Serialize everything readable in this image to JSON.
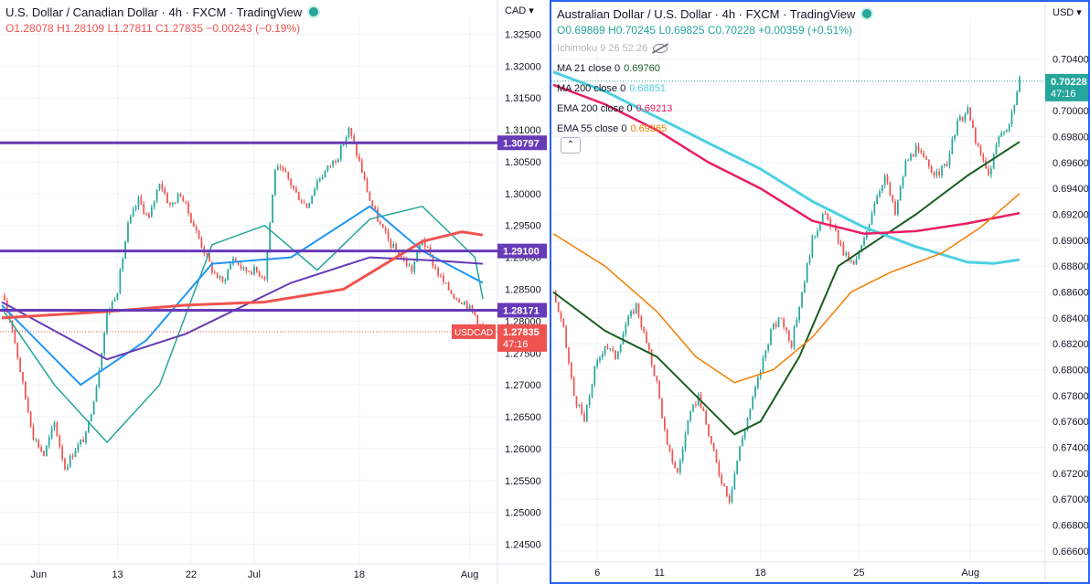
{
  "colors": {
    "up": "#26a69a",
    "down": "#ef5350",
    "level_line": "#673ab7",
    "axis_text": "#131722",
    "grid": "#f0f3fa"
  },
  "left_chart": {
    "header": {
      "title": "U.S. Dollar / Canadian Dollar · 4h · FXCM · TradingView",
      "open": "O1.28078",
      "high": "H1.28109",
      "low": "L1.27811",
      "close": "C1.27835",
      "change": "−0.00243 (−0.19%)"
    },
    "currency_label": "CAD",
    "last_price_label": "1.27835",
    "countdown": "47:16",
    "symbol_tag": "USDCAD"
  },
  "right_chart": {
    "header": {
      "title": "Australian Dollar / U.S. Dollar · 4h · FXCM · TradingView",
      "open": "O0.69869",
      "high": "H0.70245",
      "low": "L0.69825",
      "close": "C0.70228",
      "change": "+0.00359 (+0.51%)"
    },
    "currency_label": "USD",
    "last_price_label": "0.70228",
    "countdown": "47:16",
    "indicators": [
      {
        "label": "Ichimoku 9 26 52 26",
        "value": "",
        "color": "#b2b5be",
        "hidden": true
      },
      {
        "label": "MA 21 close 0",
        "value": "0.69760",
        "color": "#1b5e20"
      },
      {
        "label": "MA 200 close 0",
        "value": "0.68851",
        "color": "#4dd0e1"
      },
      {
        "label": "EMA 200 close 0",
        "value": "0.69213",
        "color": "#e91e63"
      },
      {
        "label": "EMA 55 close 0",
        "value": "0.69365",
        "color": "#f57c00"
      }
    ],
    "collapse_symbol": "⌃"
  },
  "chart_data": [
    {
      "type": "candlestick",
      "symbol": "USDCAD",
      "title": "U.S. Dollar / Canadian Dollar · 4h · FXCM · TradingView",
      "ylim": [
        1.2425,
        1.3275
      ],
      "y_ticks": [
        "1.32500",
        "1.32000",
        "1.31500",
        "1.31000",
        "1.30500",
        "1.30000",
        "1.29500",
        "1.29000",
        "1.28500",
        "1.28000",
        "1.27500",
        "1.27000",
        "1.26500",
        "1.26000",
        "1.25500",
        "1.25000",
        "1.24500"
      ],
      "x_ticks": [
        "Jun",
        "13",
        "22",
        "Jul",
        "18",
        "Aug"
      ],
      "horizontal_levels": [
        {
          "value": 1.30797,
          "label": "1.30797"
        },
        {
          "value": 1.291,
          "label": "1.29100"
        },
        {
          "value": 1.28171,
          "label": "1.28171"
        }
      ],
      "last_price": 1.27835,
      "close_path": [
        [
          0,
          1.284
        ],
        [
          4,
          1.279
        ],
        [
          8,
          1.27
        ],
        [
          12,
          1.262
        ],
        [
          16,
          1.259
        ],
        [
          20,
          1.264
        ],
        [
          24,
          1.257
        ],
        [
          28,
          1.26
        ],
        [
          32,
          1.262
        ],
        [
          36,
          1.27
        ],
        [
          40,
          1.281
        ],
        [
          44,
          1.285
        ],
        [
          48,
          1.295
        ],
        [
          52,
          1.299
        ],
        [
          56,
          1.296
        ],
        [
          60,
          1.302
        ],
        [
          64,
          1.298
        ],
        [
          68,
          1.3
        ],
        [
          72,
          1.296
        ],
        [
          76,
          1.292
        ],
        [
          80,
          1.288
        ],
        [
          84,
          1.286
        ],
        [
          88,
          1.29
        ],
        [
          92,
          1.288
        ],
        [
          96,
          1.288
        ],
        [
          100,
          1.287
        ],
        [
          104,
          1.304
        ],
        [
          108,
          1.303
        ],
        [
          112,
          1.3
        ],
        [
          116,
          1.298
        ],
        [
          120,
          1.302
        ],
        [
          124,
          1.304
        ],
        [
          128,
          1.306
        ],
        [
          132,
          1.31
        ],
        [
          136,
          1.305
        ],
        [
          140,
          1.299
        ],
        [
          144,
          1.295
        ],
        [
          148,
          1.292
        ],
        [
          152,
          1.29
        ],
        [
          156,
          1.288
        ],
        [
          160,
          1.293
        ],
        [
          164,
          1.289
        ],
        [
          168,
          1.286
        ],
        [
          172,
          1.284
        ],
        [
          176,
          1.283
        ],
        [
          180,
          1.281
        ],
        [
          183,
          1.27835
        ]
      ],
      "series": [
        {
          "name": "",
          "color": "#26a69a",
          "values": [
            [
              0,
              1.282
            ],
            [
              20,
              1.27
            ],
            [
              40,
              1.261
            ],
            [
              60,
              1.27
            ],
            [
              80,
              1.292
            ],
            [
              100,
              1.295
            ],
            [
              120,
              1.288
            ],
            [
              140,
              1.296
            ],
            [
              160,
              1.298
            ],
            [
              180,
              1.29
            ],
            [
              183,
              1.2835
            ]
          ]
        },
        {
          "name": "",
          "color": "#2196f3",
          "values": [
            [
              0,
              1.2825
            ],
            [
              30,
              1.27
            ],
            [
              55,
              1.277
            ],
            [
              80,
              1.289
            ],
            [
              110,
              1.29
            ],
            [
              140,
              1.298
            ],
            [
              160,
              1.291
            ],
            [
              183,
              1.286
            ]
          ]
        },
        {
          "name": "",
          "color": "#673ab7",
          "values": [
            [
              0,
              1.283
            ],
            [
              40,
              1.274
            ],
            [
              70,
              1.278
            ],
            [
              110,
              1.286
            ],
            [
              140,
              1.29
            ],
            [
              165,
              1.2895
            ],
            [
              183,
              1.289
            ]
          ]
        },
        {
          "name": "",
          "color": "#ef5350",
          "values": [
            [
              0,
              1.2805
            ],
            [
              40,
              1.2815
            ],
            [
              70,
              1.2825
            ],
            [
              100,
              1.283
            ],
            [
              130,
              1.285
            ],
            [
              160,
              1.2925
            ],
            [
              175,
              1.294
            ],
            [
              183,
              1.2935
            ]
          ]
        }
      ]
    },
    {
      "type": "candlestick",
      "symbol": "AUDUSD",
      "title": "Australian Dollar / U.S. Dollar · 4h · FXCM · TradingView",
      "ylim": [
        0.665,
        0.707
      ],
      "y_ticks": [
        "0.70400",
        "0.70200",
        "0.70000",
        "0.69800",
        "0.69600",
        "0.69400",
        "0.69200",
        "0.69000",
        "0.68800",
        "0.68600",
        "0.68400",
        "0.68200",
        "0.68000",
        "0.67800",
        "0.67600",
        "0.67400",
        "0.67200",
        "0.67000",
        "0.66800",
        "0.66600"
      ],
      "x_ticks": [
        "6",
        "11",
        "18",
        "25",
        "Aug"
      ],
      "last_price": 0.70228,
      "close_path": [
        [
          0,
          0.686
        ],
        [
          4,
          0.683
        ],
        [
          8,
          0.678
        ],
        [
          12,
          0.676
        ],
        [
          16,
          0.68
        ],
        [
          20,
          0.682
        ],
        [
          24,
          0.681
        ],
        [
          28,
          0.6835
        ],
        [
          32,
          0.685
        ],
        [
          36,
          0.682
        ],
        [
          40,
          0.679
        ],
        [
          44,
          0.674
        ],
        [
          48,
          0.672
        ],
        [
          52,
          0.676
        ],
        [
          56,
          0.678
        ],
        [
          60,
          0.675
        ],
        [
          64,
          0.672
        ],
        [
          68,
          0.67
        ],
        [
          72,
          0.674
        ],
        [
          76,
          0.677
        ],
        [
          80,
          0.68
        ],
        [
          84,
          0.683
        ],
        [
          88,
          0.684
        ],
        [
          92,
          0.682
        ],
        [
          96,
          0.686
        ],
        [
          100,
          0.69
        ],
        [
          104,
          0.692
        ],
        [
          108,
          0.691
        ],
        [
          112,
          0.689
        ],
        [
          116,
          0.688
        ],
        [
          120,
          0.69
        ],
        [
          124,
          0.693
        ],
        [
          128,
          0.695
        ],
        [
          132,
          0.692
        ],
        [
          136,
          0.696
        ],
        [
          140,
          0.697
        ],
        [
          144,
          0.696
        ],
        [
          148,
          0.695
        ],
        [
          152,
          0.696
        ],
        [
          156,
          0.699
        ],
        [
          160,
          0.7
        ],
        [
          164,
          0.697
        ],
        [
          168,
          0.695
        ],
        [
          172,
          0.698
        ],
        [
          176,
          0.699
        ],
        [
          180,
          0.7023
        ]
      ],
      "series": [
        {
          "name": "MA 21 close 0",
          "color": "#1b5e20",
          "values": [
            [
              0,
              0.686
            ],
            [
              20,
              0.683
            ],
            [
              40,
              0.681
            ],
            [
              55,
              0.678
            ],
            [
              70,
              0.675
            ],
            [
              80,
              0.676
            ],
            [
              95,
              0.681
            ],
            [
              110,
              0.688
            ],
            [
              125,
              0.69
            ],
            [
              140,
              0.692
            ],
            [
              160,
              0.695
            ],
            [
              180,
              0.6976
            ]
          ]
        },
        {
          "name": "MA 200 close 0",
          "color": "#4dd0e1",
          "values": [
            [
              0,
              0.703
            ],
            [
              20,
              0.7015
            ],
            [
              40,
              0.6995
            ],
            [
              60,
              0.6975
            ],
            [
              80,
              0.6955
            ],
            [
              100,
              0.693
            ],
            [
              120,
              0.691
            ],
            [
              140,
              0.6895
            ],
            [
              160,
              0.6883
            ],
            [
              170,
              0.6882
            ],
            [
              180,
              0.6885
            ]
          ]
        },
        {
          "name": "EMA 200 close 0",
          "color": "#e91e63",
          "values": [
            [
              0,
              0.702
            ],
            [
              20,
              0.7005
            ],
            [
              40,
              0.6985
            ],
            [
              60,
              0.696
            ],
            [
              80,
              0.694
            ],
            [
              100,
              0.6915
            ],
            [
              120,
              0.6905
            ],
            [
              140,
              0.6907
            ],
            [
              160,
              0.6913
            ],
            [
              180,
              0.6921
            ]
          ]
        },
        {
          "name": "EMA 55 close 0",
          "color": "#f57c00",
          "values": [
            [
              0,
              0.6905
            ],
            [
              20,
              0.688
            ],
            [
              40,
              0.6845
            ],
            [
              55,
              0.681
            ],
            [
              70,
              0.679
            ],
            [
              85,
              0.68
            ],
            [
              100,
              0.6825
            ],
            [
              115,
              0.686
            ],
            [
              130,
              0.6875
            ],
            [
              150,
              0.689
            ],
            [
              165,
              0.691
            ],
            [
              180,
              0.6936
            ]
          ]
        }
      ]
    }
  ]
}
